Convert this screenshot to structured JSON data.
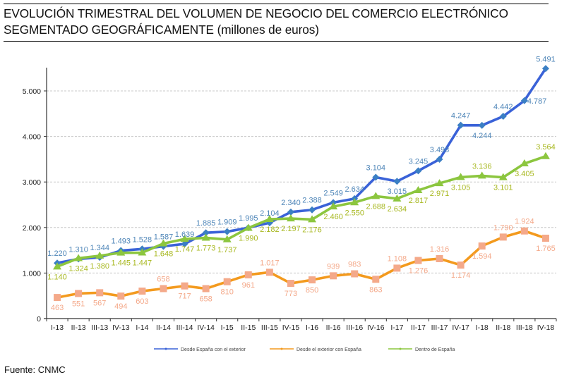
{
  "title": {
    "line1": "EVOLUCIÓN TRIMESTRAL DEL VOLUMEN DE NEGOCIO DEL COMERCIO ELECTRÓNICO",
    "line2_main": "SEGMENTADO GEOGRÁFICAMENTE",
    "line2_unit": " (millones de euros)"
  },
  "source": "Fuente: CNMC",
  "chart_data": {
    "type": "line",
    "title": "EVOLUCIÓN TRIMESTRAL DEL VOLUMEN DE NEGOCIO DEL COMERCIO ELECTRÓNICO SEGMENTADO GEOGRÁFICAMENTE (millones de euros)",
    "xlabel": "",
    "ylabel": "",
    "ylim": [
      0,
      5500
    ],
    "yticks": [
      0,
      1000,
      2000,
      3000,
      4000,
      5000
    ],
    "ytick_labels": [
      "0",
      "1.000",
      "2.000",
      "3.000",
      "4.000",
      "5.000"
    ],
    "grid": true,
    "legend_position": "bottom",
    "categories": [
      "I-13",
      "II-13",
      "III-13",
      "IV-13",
      "I-14",
      "II-14",
      "III-14",
      "IV-14",
      "I-15",
      "II-15",
      "III-15",
      "IV-15",
      "I-16",
      "II-16",
      "III-16",
      "IV-16",
      "I-17",
      "II-17",
      "III-17",
      "IV-17",
      "I-18",
      "II-18",
      "III-18",
      "IV-18"
    ],
    "series": [
      {
        "name": "Desde España con el exterior",
        "color": "#3a62d8",
        "label_color": "#4f86b8",
        "marker": "diamond",
        "values": [
          1220,
          1310,
          1344,
          1493,
          1528,
          1587,
          1639,
          1885,
          1909,
          1995,
          2104,
          2340,
          2388,
          2549,
          2634,
          3104,
          3015,
          3245,
          3498,
          4247,
          4244,
          4442,
          4787,
          5491
        ],
        "labels": [
          "1.220",
          "1.310",
          "1.344",
          "1.493",
          "1.528",
          "1.587",
          "1.639",
          "1.885",
          "1.909",
          "1.995",
          "2.104",
          "2.340",
          "2.388",
          "2.549",
          "2.634",
          "3.104",
          "3.015",
          "3.245",
          "3.498",
          "4.247",
          "4.244",
          "4.442",
          "4.787",
          "5.491"
        ],
        "label_pos": [
          "a",
          "a",
          "a",
          "a",
          "a",
          "a",
          "a",
          "a",
          "a",
          "a",
          "a",
          "a",
          "a",
          "a",
          "a",
          "a",
          "b",
          "a",
          "a",
          "a",
          "b",
          "a",
          "r",
          "a"
        ]
      },
      {
        "name": "Desde el exterior con España",
        "color": "#f39a1e",
        "label_color": "#f4a98a",
        "marker": "square",
        "marker_color": "#f4a98a",
        "values": [
          463,
          551,
          567,
          494,
          603,
          658,
          717,
          658,
          810,
          961,
          1017,
          773,
          850,
          939,
          983,
          863,
          1108,
          1276,
          1316,
          1174,
          1594,
          1790,
          1924,
          1765
        ],
        "labels": [
          "463",
          "551",
          "567",
          "494",
          "603",
          "658",
          "717",
          "658",
          "810",
          "961",
          "1.017",
          "773",
          "850",
          "939",
          "983",
          "863",
          "1.108",
          "1.276",
          "1.316",
          "1.174",
          "1.594",
          "1.790",
          "1.924",
          "1.765"
        ],
        "label_pos": [
          "b",
          "b",
          "b",
          "b",
          "b",
          "a",
          "b",
          "b",
          "b",
          "b",
          "a",
          "b",
          "b",
          "a",
          "a",
          "b",
          "a",
          "b",
          "a",
          "b",
          "b",
          "a",
          "a",
          "b"
        ]
      },
      {
        "name": "Dentro de España",
        "color": "#8cc63f",
        "label_color": "#a8b820",
        "marker": "triangle",
        "values": [
          1140,
          1324,
          1380,
          1445,
          1447,
          1648,
          1747,
          1773,
          1737,
          1990,
          2182,
          2197,
          2176,
          2460,
          2550,
          2688,
          2634,
          2817,
          2971,
          3105,
          3136,
          3101,
          3405,
          3564
        ],
        "labels": [
          "1.140",
          "1.324",
          "1.380",
          "1.445",
          "1.447",
          "1.648",
          "1.747",
          "1.773",
          "1.737",
          "1.990",
          "2.182",
          "2.197",
          "2.176",
          "2.460",
          "2.550",
          "2.688",
          "2.634",
          "2.817",
          "2.971",
          "3.105",
          "3.136",
          "3.101",
          "3.405",
          "3.564"
        ],
        "label_pos": [
          "b",
          "b",
          "b",
          "b",
          "b",
          "b",
          "b",
          "b",
          "b",
          "b",
          "b",
          "b",
          "b",
          "b",
          "b",
          "b",
          "b",
          "b",
          "b",
          "b",
          "a",
          "b",
          "b",
          "a"
        ]
      }
    ]
  }
}
